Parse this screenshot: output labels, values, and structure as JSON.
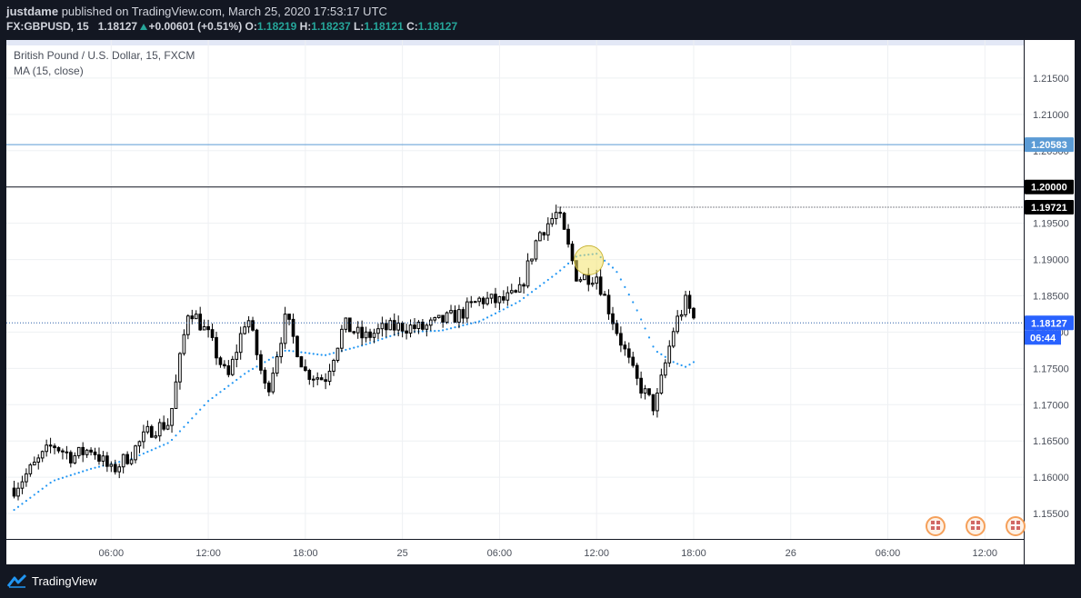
{
  "header": {
    "username": "justdame",
    "published_text": "published on TradingView.com, March 25, 2020 17:53:17 UTC",
    "symbol": "FX:GBPUSD, 15",
    "last_price": "1.18127",
    "change": "+0.00601 (+0.51%)",
    "open_label": "O:",
    "open": "1.18219",
    "high_label": "H:",
    "high": "1.18237",
    "low_label": "L:",
    "low": "1.18121",
    "close_label": "C:",
    "close": "1.18127"
  },
  "legend": {
    "instrument": "British Pound / U.S. Dollar, 15, FXCM",
    "indicator": "MA (15, close)"
  },
  "footer": {
    "brand": "TradingView"
  },
  "colors": {
    "up": "#26a69a",
    "candle": "#000000",
    "ma": "#2196f3",
    "price_line_blue": "#5b9bd5",
    "highlight": "#f4e36c"
  },
  "chart_data": {
    "type": "candlestick",
    "title": "British Pound / U.S. Dollar, 15, FXCM",
    "ylim": [
      1.1515,
      1.2195
    ],
    "y_ticks": [
      {
        "value": 1.155,
        "label": "1.15500"
      },
      {
        "value": 1.16,
        "label": "1.16000"
      },
      {
        "value": 1.165,
        "label": "1.16500"
      },
      {
        "value": 1.17,
        "label": "1.17000"
      },
      {
        "value": 1.175,
        "label": "1.17500"
      },
      {
        "value": 1.18,
        "label": "1.18000"
      },
      {
        "value": 1.185,
        "label": "1.18500"
      },
      {
        "value": 1.19,
        "label": "1.19000"
      },
      {
        "value": 1.195,
        "label": "1.19500"
      },
      {
        "value": 1.2,
        "label": "1.20000"
      },
      {
        "value": 1.205,
        "label": "1.20500"
      },
      {
        "value": 1.21,
        "label": "1.21000"
      },
      {
        "value": 1.215,
        "label": "1.21500"
      }
    ],
    "x_ticks": [
      {
        "t": 0.25,
        "label": "06:00"
      },
      {
        "t": 0.5,
        "label": "12:00"
      },
      {
        "t": 0.75,
        "label": "18:00"
      },
      {
        "t": 1.0,
        "label": "25"
      },
      {
        "t": 1.25,
        "label": "06:00"
      },
      {
        "t": 1.5,
        "label": "12:00"
      },
      {
        "t": 1.75,
        "label": "18:00"
      },
      {
        "t": 2.0,
        "label": "26"
      },
      {
        "t": 2.25,
        "label": "06:00"
      },
      {
        "t": 2.5,
        "label": "12:00"
      }
    ],
    "x_range_days": [
      -0.02,
      2.6
    ],
    "price_lines": [
      {
        "value": 1.20583,
        "label": "1.20583",
        "style": "solid",
        "color": "#5b9bd5",
        "tag_bg": "#5b9bd5"
      },
      {
        "value": 1.2,
        "label": "1.20000",
        "style": "solid",
        "color": "#131722",
        "tag_bg": "#000000"
      },
      {
        "value": 1.19721,
        "label": "1.19721",
        "style": "dotted",
        "color": "#131722",
        "tag_bg": "#000000",
        "from_t": 1.4
      },
      {
        "value": 1.18127,
        "label": "1.18127",
        "style": "dotted",
        "color": "#2a5ea8",
        "tag_bg": "#2962ff",
        "sub_label": "06:44"
      }
    ],
    "highlight_circle": {
      "t": 1.48,
      "value": 1.1899
    },
    "candles_anchor": [
      [
        0.0,
        1.1585
      ],
      [
        0.05,
        1.1615
      ],
      [
        0.1,
        1.1645
      ],
      [
        0.15,
        1.1628
      ],
      [
        0.2,
        1.164
      ],
      [
        0.25,
        1.1608
      ],
      [
        0.3,
        1.1632
      ],
      [
        0.35,
        1.1665
      ],
      [
        0.4,
        1.1675
      ],
      [
        0.45,
        1.1835
      ],
      [
        0.5,
        1.1795
      ],
      [
        0.55,
        1.1735
      ],
      [
        0.6,
        1.1825
      ],
      [
        0.65,
        1.1715
      ],
      [
        0.7,
        1.182
      ],
      [
        0.75,
        1.1745
      ],
      [
        0.8,
        1.1735
      ],
      [
        0.85,
        1.181
      ],
      [
        0.9,
        1.1792
      ],
      [
        0.95,
        1.1804
      ],
      [
        1.0,
        1.1808
      ],
      [
        1.05,
        1.1805
      ],
      [
        1.1,
        1.1815
      ],
      [
        1.15,
        1.1825
      ],
      [
        1.2,
        1.1845
      ],
      [
        1.25,
        1.1842
      ],
      [
        1.3,
        1.1852
      ],
      [
        1.35,
        1.1935
      ],
      [
        1.4,
        1.1965
      ],
      [
        1.45,
        1.1875
      ],
      [
        1.5,
        1.1878
      ],
      [
        1.55,
        1.1805
      ],
      [
        1.6,
        1.1735
      ],
      [
        1.65,
        1.1695
      ],
      [
        1.7,
        1.1808
      ],
      [
        1.73,
        1.1842
      ],
      [
        1.75,
        1.1818
      ]
    ],
    "ma_anchor": [
      [
        0.0,
        1.1555
      ],
      [
        0.1,
        1.1595
      ],
      [
        0.2,
        1.1612
      ],
      [
        0.3,
        1.1625
      ],
      [
        0.4,
        1.1648
      ],
      [
        0.5,
        1.1705
      ],
      [
        0.6,
        1.1745
      ],
      [
        0.7,
        1.1775
      ],
      [
        0.8,
        1.1768
      ],
      [
        0.9,
        1.1782
      ],
      [
        1.0,
        1.18
      ],
      [
        1.1,
        1.1802
      ],
      [
        1.2,
        1.1815
      ],
      [
        1.3,
        1.1842
      ],
      [
        1.4,
        1.1882
      ],
      [
        1.45,
        1.1905
      ],
      [
        1.5,
        1.1908
      ],
      [
        1.55,
        1.1885
      ],
      [
        1.6,
        1.1835
      ],
      [
        1.65,
        1.1775
      ],
      [
        1.7,
        1.1758
      ],
      [
        1.73,
        1.1752
      ],
      [
        1.76,
        1.1762
      ]
    ]
  }
}
